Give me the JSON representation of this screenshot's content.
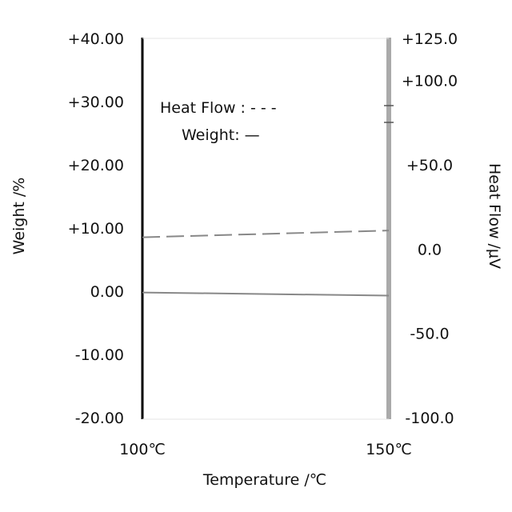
{
  "chart_data": {
    "type": "line",
    "x": [
      100,
      150
    ],
    "xlabel": "Temperature /℃",
    "x_tick_labels": [
      "100℃",
      "150℃"
    ],
    "xlim": [
      100,
      150
    ],
    "y_left": {
      "label": "Weight /%",
      "ticks": [
        40,
        30,
        20,
        10,
        0,
        -10,
        -20
      ],
      "tick_labels": [
        "+40.00",
        "+30.00",
        "+20.00",
        "+10.00",
        "0.00",
        "-10.00",
        "-20.00"
      ],
      "ylim": [
        -20,
        40
      ]
    },
    "y_right": {
      "label": "Heat Flow /μV",
      "ticks": [
        125,
        100,
        50,
        0,
        -50,
        -100
      ],
      "tick_labels": [
        "+125.0",
        "+100.0",
        "+50.0",
        "0.0",
        "-50.0",
        "-100.0"
      ],
      "ylim": [
        -100,
        125
      ]
    },
    "series": [
      {
        "name": "Heat Flow",
        "axis": "right",
        "style": "dashed",
        "color": "#888888",
        "values": [
          7.0,
          11.0
        ]
      },
      {
        "name": "Weight",
        "axis": "left",
        "style": "solid",
        "color": "#888888",
        "values": [
          -0.2,
          -0.7
        ]
      }
    ],
    "legend": [
      {
        "label": "Heat Flow : - - -"
      },
      {
        "label": "Weight: —"
      }
    ],
    "legend_placement": "top-left",
    "grid": false
  }
}
